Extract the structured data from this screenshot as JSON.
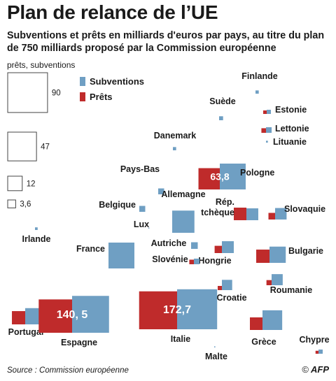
{
  "title": "Plan de relance de l’UE",
  "subtitle": "Subventions et prêts en milliards d'euros par pays, au titre du plan de 750 milliards proposé par la Commission européenne",
  "scale_caption": "prêts, subventions",
  "source": "Source : Commission européenne",
  "credit": "AFP",
  "credit_symbol": "©",
  "colors": {
    "grants": "#6f9fc3",
    "loans": "#bf2b2b",
    "scale_outline": "#444444"
  },
  "chart_data": {
    "type": "bar",
    "title": "Plan de relance de l’UE",
    "unit": "milliards d'euros",
    "encoding": "area",
    "legend": [
      {
        "key": "grants",
        "label": "Subventions"
      },
      {
        "key": "loans",
        "label": "Prêts"
      }
    ],
    "scale": [
      90,
      47,
      12,
      3.6
    ],
    "countries": [
      {
        "name": "Finlande",
        "grants": 0.6,
        "loans": 0
      },
      {
        "name": "Suède",
        "grants": 0.9,
        "loans": 0
      },
      {
        "name": "Estonie",
        "grants": 1.0,
        "loans": 0.7
      },
      {
        "name": "Lettonie",
        "grants": 1.8,
        "loans": 1.2
      },
      {
        "name": "Lituanie",
        "grants": 0.2,
        "loans": 0
      },
      {
        "name": "Danemark",
        "grants": 0.6,
        "loans": 0
      },
      {
        "name": "Pays-Bas",
        "grants": 2.0,
        "loans": 0
      },
      {
        "name": "Pologne",
        "grants": 38.0,
        "loans": 25.8,
        "value_label": "63,8"
      },
      {
        "name": "Belgique",
        "grants": 2.0,
        "loans": 0
      },
      {
        "name": "Allemagne",
        "grants": 28.0,
        "loans": 0
      },
      {
        "name": "Rép. tchèque",
        "grants": 8.0,
        "loans": 9.0
      },
      {
        "name": "Slovaquie",
        "grants": 7.5,
        "loans": 2.5
      },
      {
        "name": "Lux",
        "grants": 0.05,
        "loans": 0
      },
      {
        "name": "Irlande",
        "grants": 0.4,
        "loans": 0
      },
      {
        "name": "France",
        "grants": 38.0,
        "loans": 0
      },
      {
        "name": "Autriche",
        "grants": 2.5,
        "loans": 0
      },
      {
        "name": "Hongrie",
        "grants": 8.0,
        "loans": 3.0
      },
      {
        "name": "Bulgarie",
        "grants": 15.0,
        "loans": 10.0
      },
      {
        "name": "Slovénie",
        "grants": 1.8,
        "loans": 1.2
      },
      {
        "name": "Croatie",
        "grants": 6.0,
        "loans": 1.0
      },
      {
        "name": "Roumanie",
        "grants": 7.0,
        "loans": 1.5
      },
      {
        "name": "Portugal",
        "grants": 15.0,
        "loans": 10.0
      },
      {
        "name": "Espagne",
        "grants": 77.3,
        "loans": 63.2,
        "value_label": "140, 5"
      },
      {
        "name": "Italie",
        "grants": 90.9,
        "loans": 81.8,
        "value_label": "172,7"
      },
      {
        "name": "Grèce",
        "grants": 22.0,
        "loans": 9.0
      },
      {
        "name": "Malte",
        "grants": 0.07,
        "loans": 0
      },
      {
        "name": "Chypre",
        "grants": 1.0,
        "loans": 0.5
      }
    ]
  }
}
